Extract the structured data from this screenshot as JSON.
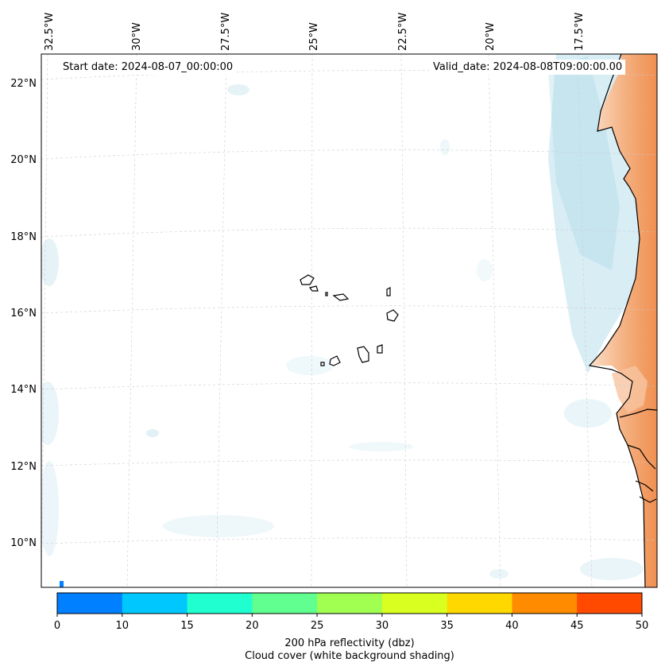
{
  "map": {
    "start_date_label": "Start date: 2024-08-07_00:00:00",
    "valid_date_label": "Valid_date: 2024-08-08T09:00:00.00",
    "longitude_labels": [
      "32.5°W",
      "30°W",
      "27.5°W",
      "25°W",
      "22.5°W",
      "20°W",
      "17.5°W"
    ],
    "latitude_labels": [
      "22°N",
      "20°N",
      "18°N",
      "16°N",
      "14°N",
      "12°N",
      "10°N"
    ],
    "region": "Cape Verde Islands and West African coast"
  },
  "colorbar": {
    "ticks": [
      "0",
      "10",
      "15",
      "20",
      "25",
      "30",
      "35",
      "40",
      "45",
      "50"
    ],
    "colors": [
      "#0080ff",
      "#00c8ff",
      "#20ffd0",
      "#60ff90",
      "#a0ff50",
      "#d8ff20",
      "#ffd800",
      "#ff8c00",
      "#ff4a00"
    ],
    "title": "200 hPa reflectivity (dbz)",
    "subtitle": "Cloud cover (white background shading)"
  },
  "colors": {
    "land_dust": "#f29a5a",
    "cloud_shade": "#a8d8e6",
    "coastline": "#000000",
    "grid": "#cccccc"
  }
}
